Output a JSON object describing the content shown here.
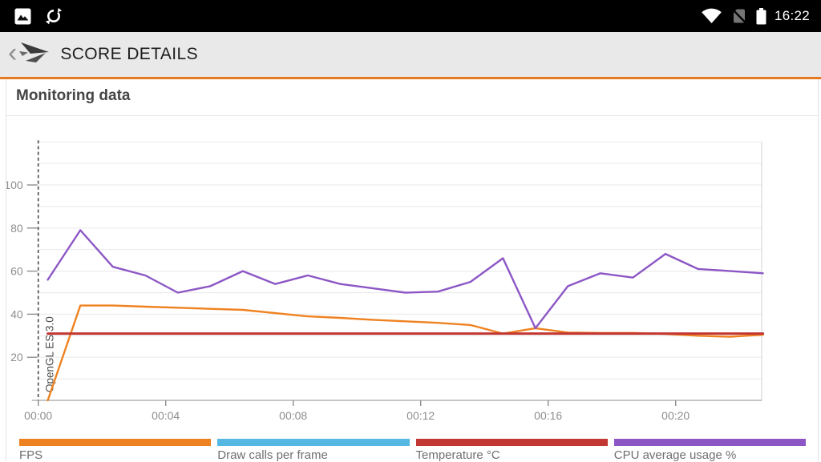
{
  "status_bar": {
    "time": "16:22",
    "left_icons": [
      "image-notification-icon",
      "sync-icon"
    ],
    "right_icons": [
      "wifi-icon",
      "no-sim-icon",
      "battery-icon"
    ]
  },
  "header": {
    "back_glyph": "‹",
    "title": "SCORE DETAILS"
  },
  "section": {
    "title": "Monitoring data"
  },
  "chart_data": {
    "type": "line",
    "title": "Monitoring data",
    "xlabel": "",
    "ylabel": "",
    "grid": true,
    "legend_position": "bottom",
    "ylim": [
      0,
      120
    ],
    "gridline_step": 10,
    "yticks": [
      20,
      40,
      60,
      80,
      100
    ],
    "xticks_minutes": [
      0,
      4,
      8,
      12,
      16,
      20
    ],
    "x_tick_labels": [
      "00:00",
      "00:04",
      "00:08",
      "00:12",
      "00:16",
      "00:20"
    ],
    "x_range_minutes": [
      0,
      22.7
    ],
    "sample_start_min": 0.3,
    "sample_interval_min": 1.02,
    "annotation": {
      "label": "OpenGL ES 3.0",
      "at_minute": 0
    },
    "series": [
      {
        "name": "FPS",
        "color": "#ef8220",
        "width": 2.4,
        "values": [
          0,
          44,
          44,
          43.5,
          43,
          42.5,
          42,
          40.5,
          39,
          38.3,
          37.4,
          36.7,
          36,
          35,
          31,
          33.5,
          31.5,
          31.3,
          31.3,
          30.8,
          30,
          29.5,
          30.5
        ]
      },
      {
        "name": "Draw calls per frame",
        "color": "#54b8e3",
        "width": 2.4,
        "values": []
      },
      {
        "name": "Temperature °C",
        "color": "#c23732",
        "width": 3,
        "values": [
          31,
          31,
          31,
          31,
          31,
          31,
          31,
          31,
          31,
          31,
          31,
          31,
          31,
          31,
          31,
          31,
          31,
          31,
          31,
          31,
          31,
          31,
          31
        ]
      },
      {
        "name": "CPU average usage %",
        "color": "#8c57c5",
        "width": 2.4,
        "values": [
          56,
          79,
          62,
          58,
          50,
          53,
          60,
          54,
          58,
          54,
          52,
          50,
          50.5,
          55,
          66,
          33.5,
          53,
          59,
          57,
          68,
          61,
          60,
          59
        ]
      }
    ]
  }
}
